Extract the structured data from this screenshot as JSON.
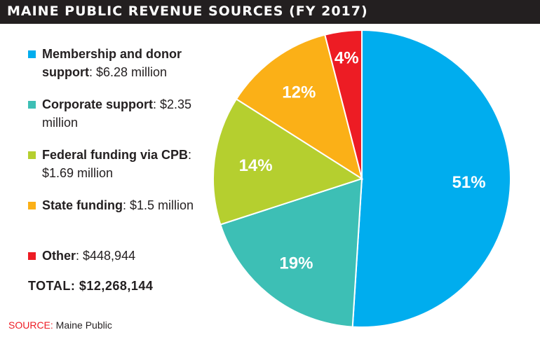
{
  "header": {
    "title": "MAINE PUBLIC REVENUE SOURCES (FY 2017)"
  },
  "chart_data": {
    "type": "pie",
    "title": "MAINE PUBLIC REVENUE SOURCES (FY 2017)",
    "slices": [
      {
        "label_name": "Membership and donor support",
        "label_value": ": $6.28 million",
        "percent": 51,
        "percent_label": "51%",
        "color": "#00adee"
      },
      {
        "label_name": "Corporate support",
        "label_value": ": $2.35 million",
        "percent": 19,
        "percent_label": "19%",
        "color": "#3dbfb5"
      },
      {
        "label_name": "Federal funding via CPB",
        "label_value": ": $1.69 million",
        "percent": 14,
        "percent_label": "14%",
        "color": "#b5cf2f"
      },
      {
        "label_name": "State funding",
        "label_value": ": $1.5 million",
        "percent": 12,
        "percent_label": "12%",
        "color": "#fbb017"
      },
      {
        "label_name": "Other",
        "label_value": ": $448,944",
        "percent": 4,
        "percent_label": "4%",
        "color": "#ed1c24"
      }
    ],
    "total": "TOTAL: $12,268,144"
  },
  "source": {
    "label": "SOURCE:",
    "text": " Maine Public"
  }
}
